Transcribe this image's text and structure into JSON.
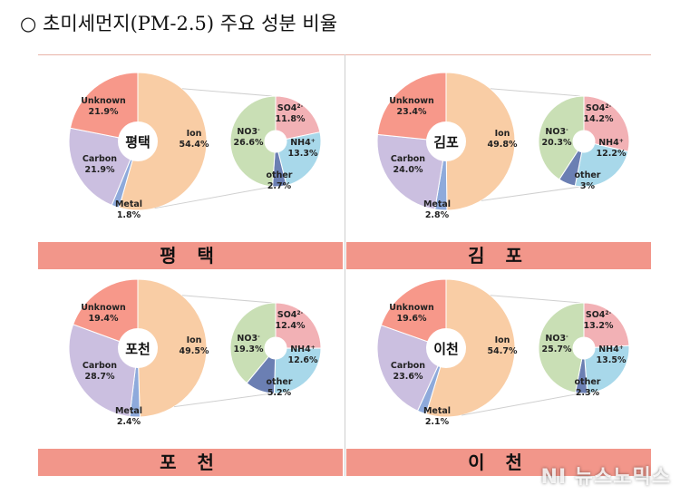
{
  "title": "○ 초미세먼지(PM-2.5) 주요 성분 비율",
  "watermark": "NI 뉴스노믹스",
  "colors": {
    "ion": "#f9cda5",
    "metal": "#8eaadb",
    "carbon": "#cbbfe0",
    "unknown": "#f7988a",
    "so4": "#f2b1b5",
    "nh4": "#a8d8ea",
    "no3": "#c9dfb5",
    "other": "#6b7fb3",
    "bar": "#f2968a"
  },
  "chart_data": [
    {
      "type": "pie",
      "region": "평택",
      "bar_label": "평 택",
      "main": [
        {
          "label": "Ion",
          "value": 54.4,
          "text": "54.4%"
        },
        {
          "label": "Metal",
          "value": 1.8,
          "text": "1.8%"
        },
        {
          "label": "Carbon",
          "value": 21.9,
          "text": "21.9%"
        },
        {
          "label": "Unknown",
          "value": 21.9,
          "text": "21.9%"
        }
      ],
      "ion": [
        {
          "label": "SO4",
          "sup": "2-",
          "value": 11.8,
          "text": "11.8%"
        },
        {
          "label": "NH4",
          "sup": "+",
          "value": 13.3,
          "text": "13.3%"
        },
        {
          "label": "other",
          "sup": "",
          "value": 2.7,
          "text": "2.7%"
        },
        {
          "label": "NO3",
          "sup": "-",
          "value": 26.6,
          "text": "26.6%"
        }
      ]
    },
    {
      "type": "pie",
      "region": "김포",
      "bar_label": "김 포",
      "main": [
        {
          "label": "Ion",
          "value": 49.8,
          "text": "49.8%"
        },
        {
          "label": "Metal",
          "value": 2.8,
          "text": "2.8%"
        },
        {
          "label": "Carbon",
          "value": 24.0,
          "text": "24.0%"
        },
        {
          "label": "Unknown",
          "value": 23.4,
          "text": "23.4%"
        }
      ],
      "ion": [
        {
          "label": "SO4",
          "sup": "2-",
          "value": 14.2,
          "text": "14.2%"
        },
        {
          "label": "NH4",
          "sup": "+",
          "value": 12.2,
          "text": "12.2%"
        },
        {
          "label": "other",
          "sup": "",
          "value": 3,
          "text": "3%"
        },
        {
          "label": "NO3",
          "sup": "-",
          "value": 20.3,
          "text": "20.3%"
        }
      ]
    },
    {
      "type": "pie",
      "region": "포천",
      "bar_label": "포 천",
      "main": [
        {
          "label": "Ion",
          "value": 49.5,
          "text": "49.5%"
        },
        {
          "label": "Metal",
          "value": 2.4,
          "text": "2.4%"
        },
        {
          "label": "Carbon",
          "value": 28.7,
          "text": "28.7%"
        },
        {
          "label": "Unknown",
          "value": 19.4,
          "text": "19.4%"
        }
      ],
      "ion": [
        {
          "label": "SO4",
          "sup": "2-",
          "value": 12.4,
          "text": "12.4%"
        },
        {
          "label": "NH4",
          "sup": "+",
          "value": 12.6,
          "text": "12.6%"
        },
        {
          "label": "other",
          "sup": "",
          "value": 5.2,
          "text": "5.2%"
        },
        {
          "label": "NO3",
          "sup": "-",
          "value": 19.3,
          "text": "19.3%"
        }
      ]
    },
    {
      "type": "pie",
      "region": "이천",
      "bar_label": "이 천",
      "main": [
        {
          "label": "Ion",
          "value": 54.7,
          "text": "54.7%"
        },
        {
          "label": "Metal",
          "value": 2.1,
          "text": "2.1%"
        },
        {
          "label": "Carbon",
          "value": 23.6,
          "text": "23.6%"
        },
        {
          "label": "Unknown",
          "value": 19.6,
          "text": "19.6%"
        }
      ],
      "ion": [
        {
          "label": "SO4",
          "sup": "2-",
          "value": 13.2,
          "text": "13.2%"
        },
        {
          "label": "NH4",
          "sup": "+",
          "value": 13.5,
          "text": "13.5%"
        },
        {
          "label": "other",
          "sup": "",
          "value": 2.3,
          "text": "2.3%"
        },
        {
          "label": "NO3",
          "sup": "-",
          "value": 25.7,
          "text": "25.7%"
        }
      ]
    }
  ]
}
